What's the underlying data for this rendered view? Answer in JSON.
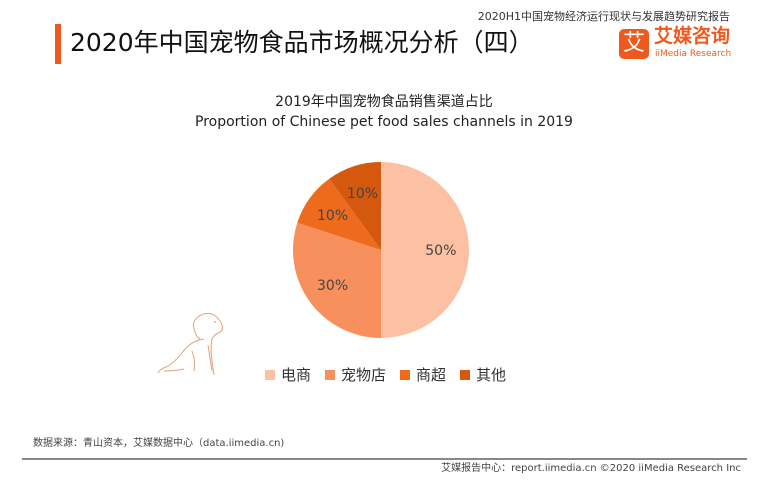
{
  "header": {
    "title": "2020年中国宠物食品市场概况分析（四）",
    "report": "2020H1中国宠物经济运行现状与发展趋势研究报告",
    "brand_glyph": "艾",
    "brand": "艾媒咨询",
    "brand_en": "iiMedia Research"
  },
  "chart_data": {
    "type": "pie",
    "title": "2019年中国宠物食品销售渠道占比",
    "subtitle": "Proportion of Chinese pet food sales channels in 2019",
    "categories": [
      "电商",
      "宠物店",
      "商超",
      "其他"
    ],
    "values": [
      50,
      30,
      10,
      10
    ],
    "labels": [
      "50%",
      "30%",
      "10%",
      "10%"
    ],
    "colors": [
      "#fcc0a2",
      "#f8905e",
      "#ee6a1c",
      "#d5580f"
    ],
    "legend": "bottom"
  },
  "footer": {
    "source": "数据来源：青山资本，艾媒数据中心（data.iimedia.cn)",
    "credit": "艾媒报告中心：report.iimedia.cn  ©2020  iiMedia Research  Inc"
  }
}
